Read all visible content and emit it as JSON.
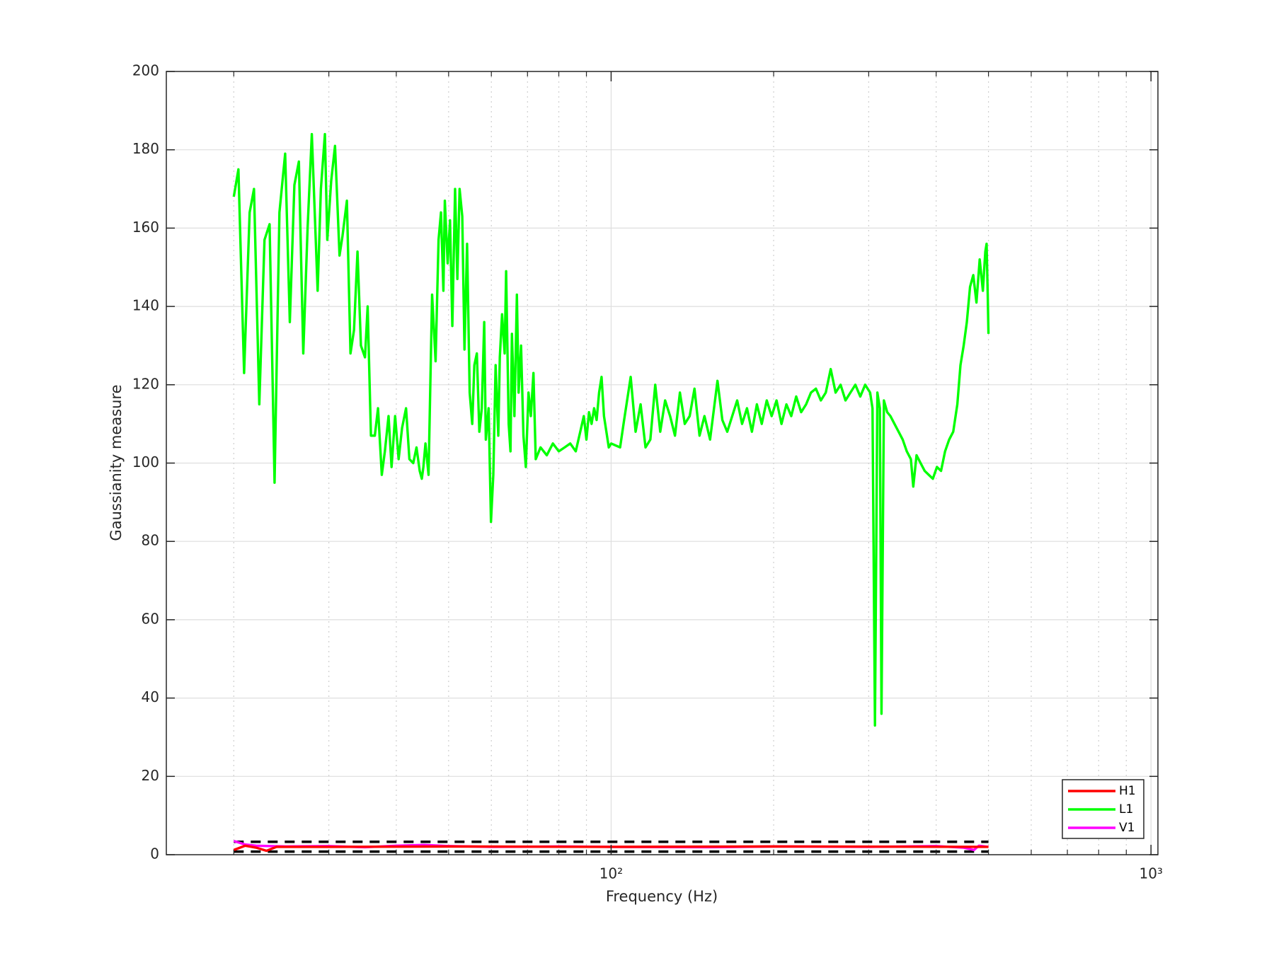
{
  "chart_data": {
    "type": "line",
    "xlabel": "Frequency (Hz)",
    "ylabel": "Gaussianity measure",
    "xscale": "log",
    "xlim": [
      15,
      1030
    ],
    "xticks": [
      {
        "value": 100,
        "label": "10²"
      },
      {
        "value": 1000,
        "label": "10³"
      }
    ],
    "xminorticks": [
      20,
      30,
      40,
      50,
      60,
      70,
      80,
      90,
      200,
      300,
      400,
      500,
      600,
      700,
      800,
      900
    ],
    "ylim": [
      0,
      200
    ],
    "yticks": [
      0,
      20,
      40,
      60,
      80,
      100,
      120,
      140,
      160,
      180,
      200
    ],
    "grid": true,
    "legend": "lower right",
    "reference_lines": {
      "values": [
        3.3,
        0.8
      ],
      "x": [
        20,
        500
      ],
      "color": "#000000"
    },
    "series": [
      {
        "name": "H1",
        "color": "#ff0000",
        "x": [
          20,
          21,
          22,
          23,
          24,
          30,
          50,
          100,
          200,
          500
        ],
        "values": [
          1.2,
          2.3,
          1.8,
          1.0,
          2.0,
          2.0,
          2.1,
          2.0,
          2.1,
          2.0
        ]
      },
      {
        "name": "L1",
        "color": "#00ff00",
        "x": [
          20,
          20.4,
          20.9,
          21.4,
          21.8,
          22.3,
          22.8,
          23.3,
          23.8,
          24.3,
          24.9,
          25.4,
          25.9,
          26.4,
          26.9,
          27.4,
          27.9,
          28.6,
          29.0,
          29.5,
          29.8,
          30.3,
          30.8,
          31.4,
          31.8,
          32.4,
          32.9,
          33.4,
          33.9,
          34.4,
          35.0,
          35.4,
          35.9,
          36.5,
          37.0,
          37.6,
          38.1,
          38.7,
          39.2,
          39.8,
          40.4,
          41.0,
          41.7,
          42.3,
          43.0,
          43.6,
          44.2,
          44.6,
          44.9,
          45.3,
          45.9,
          46.6,
          47.3,
          47.9,
          48.4,
          48.9,
          49.2,
          49.8,
          50.3,
          50.8,
          51.4,
          51.9,
          52.4,
          53.0,
          53.5,
          54.1,
          54.7,
          55.3,
          55.8,
          56.4,
          57.0,
          57.6,
          58.2,
          58.6,
          59.3,
          59.9,
          60.5,
          61.1,
          61.8,
          62.2,
          62.8,
          63.5,
          63.9,
          64.6,
          65.1,
          65.5,
          66.2,
          66.9,
          67.4,
          68.1,
          68.8,
          69.5,
          70.3,
          71.0,
          71.8,
          72.5,
          74,
          76,
          78,
          80,
          82,
          84,
          86,
          88,
          89,
          90,
          91,
          92,
          93,
          94,
          95,
          96,
          97,
          98,
          99,
          100,
          103.9,
          105.7,
          108.7,
          111.0,
          113.4,
          115.8,
          118.2,
          120.7,
          123.3,
          125.9,
          128.6,
          131.3,
          134.1,
          136.9,
          139.8,
          142.7,
          145.8,
          148.9,
          152.5,
          157.4,
          160.7,
          164.1,
          167.6,
          171.2,
          174.8,
          178.5,
          182.3,
          186.2,
          190.1,
          194.2,
          198.3,
          202.5,
          206.8,
          211.2,
          215.6,
          220.2,
          224.9,
          229.7,
          234.5,
          239.5,
          244.6,
          249.8,
          255.1,
          260.5,
          266.1,
          271.7,
          277.5,
          283.4,
          289.4,
          295.5,
          301.8,
          304.9,
          308.1,
          311.3,
          314.6,
          316.8,
          320.1,
          324.6,
          329.1,
          334.9,
          340.8,
          346.8,
          352.9,
          359.1,
          362.8,
          367.9,
          374.3,
          380.9,
          387.6,
          394.4,
          401.3,
          408.4,
          415.5,
          422.8,
          430.2,
          437.8,
          443.7,
          449.8,
          455.9,
          462.2,
          468.6,
          475.0,
          481.6,
          488.2,
          493.3,
          496,
          498.4,
          500
        ],
        "values": [
          168,
          175,
          123,
          164,
          170,
          115,
          157,
          161,
          95,
          164,
          179,
          136,
          171,
          177,
          128,
          160,
          184,
          144,
          170,
          184,
          157,
          172,
          181,
          153,
          158,
          167,
          128,
          134,
          154,
          130,
          127,
          140,
          107,
          107,
          114,
          97,
          103,
          112,
          99,
          112,
          101,
          109,
          114,
          101,
          100,
          104,
          98,
          96,
          99,
          105,
          97,
          143,
          126,
          157,
          164,
          144,
          167,
          151,
          162,
          135,
          170,
          147,
          170,
          163,
          129,
          156,
          118,
          110,
          125,
          128,
          108,
          114,
          136,
          106,
          114,
          85,
          97,
          125,
          107,
          127,
          138,
          128,
          149,
          110,
          103,
          133,
          112,
          143,
          118,
          130,
          107,
          99,
          118,
          112,
          123,
          101,
          104,
          102,
          105,
          103,
          104,
          105,
          103,
          109,
          112,
          106,
          113,
          110,
          114,
          111,
          118,
          122,
          112,
          108,
          104,
          105,
          104,
          111,
          122,
          108,
          115,
          104,
          106,
          120,
          108,
          116,
          112,
          107,
          118,
          110,
          112,
          119,
          107,
          112,
          106,
          121,
          111,
          108,
          112,
          116,
          110,
          114,
          108,
          115,
          110,
          116,
          112,
          116,
          110,
          115,
          112,
          117,
          113,
          115,
          118,
          119,
          116,
          118,
          124,
          118,
          120,
          116,
          118,
          120,
          117,
          120,
          118,
          114,
          33,
          118,
          114,
          36,
          116,
          113,
          112,
          110,
          108,
          106,
          103,
          101,
          94,
          102,
          100,
          98,
          97,
          96,
          99,
          98,
          103,
          106,
          108,
          115,
          125,
          130,
          136,
          145,
          148,
          141,
          152,
          144,
          154,
          156,
          143,
          133
        ]
      },
      {
        "name": "V1",
        "color": "#ff00ff",
        "x": [
          20,
          21,
          22,
          25,
          30,
          35,
          40,
          45,
          50,
          60,
          80,
          100,
          150,
          200,
          300,
          400,
          450,
          470,
          480,
          500
        ],
        "values": [
          3.5,
          2.6,
          2.3,
          2.1,
          2.2,
          1.9,
          2.3,
          2.5,
          2.2,
          2.0,
          2.1,
          2.0,
          1.9,
          2.1,
          2.0,
          2.2,
          1.8,
          1.2,
          2.3,
          2.0
        ]
      }
    ]
  }
}
